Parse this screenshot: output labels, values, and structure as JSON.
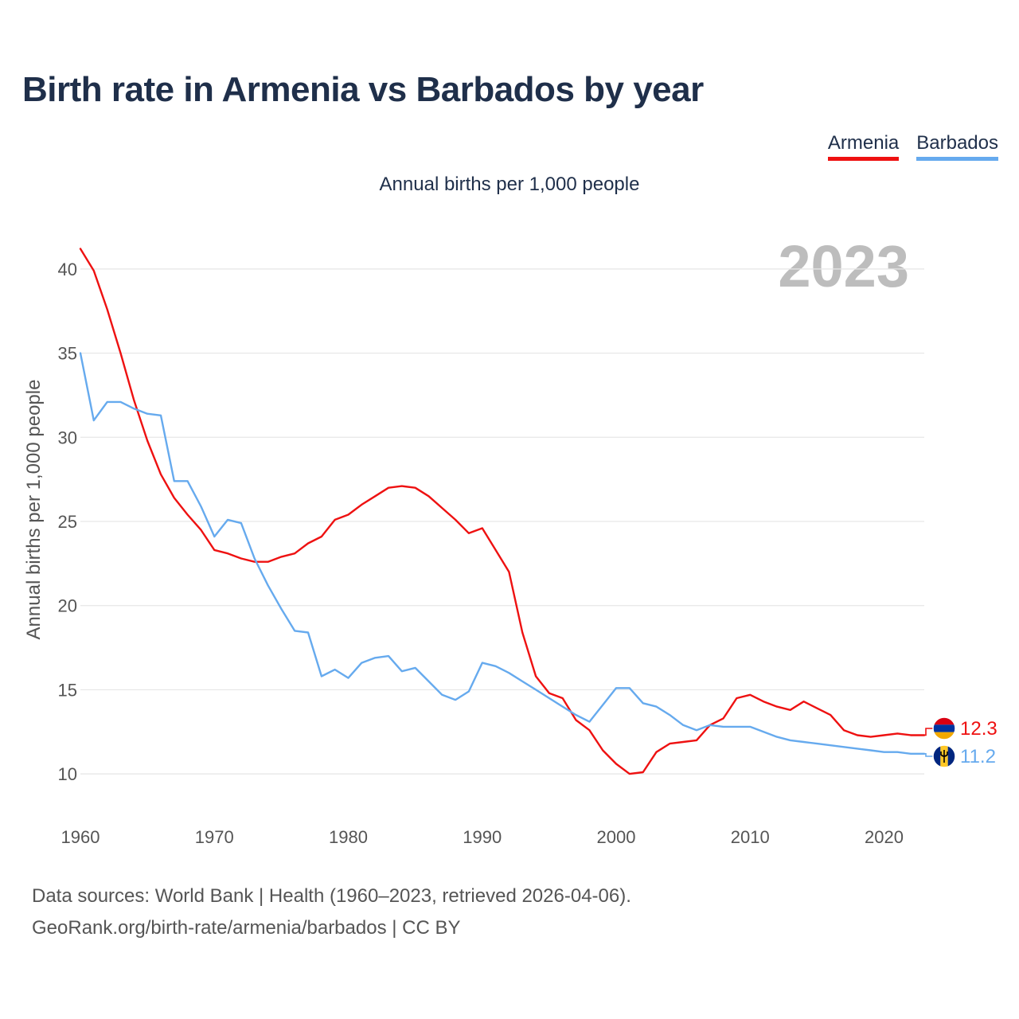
{
  "title": "Birth rate in Armenia vs Barbados by year",
  "subtitle": "Annual births per 1,000 people",
  "year_stamp": "2023",
  "legend": [
    {
      "label": "Armenia",
      "color": "#ee1111"
    },
    {
      "label": "Barbados",
      "color": "#66aaee"
    }
  ],
  "footer": {
    "line1": "Data sources: World Bank | Health (1960–2023, retrieved 2026-04-06).",
    "line2": "GeoRank.org/birth-rate/armenia/barbados | CC BY"
  },
  "chart_data": {
    "type": "line",
    "title": "Birth rate in Armenia vs Barbados by year",
    "ylabel": "Annual births per 1,000 people",
    "xlabel": "",
    "xlim": [
      1960,
      2023
    ],
    "ylim": [
      7.5,
      42.5
    ],
    "xticks": [
      1960,
      1970,
      1980,
      1990,
      2000,
      2010,
      2020
    ],
    "yticks": [
      10,
      15,
      20,
      25,
      30,
      35,
      40
    ],
    "grid": "horizontal",
    "x": [
      1960,
      1961,
      1962,
      1963,
      1964,
      1965,
      1966,
      1967,
      1968,
      1969,
      1970,
      1971,
      1972,
      1973,
      1974,
      1975,
      1976,
      1977,
      1978,
      1979,
      1980,
      1981,
      1982,
      1983,
      1984,
      1985,
      1986,
      1987,
      1988,
      1989,
      1990,
      1991,
      1992,
      1993,
      1994,
      1995,
      1996,
      1997,
      1998,
      1999,
      2000,
      2001,
      2002,
      2003,
      2004,
      2005,
      2006,
      2007,
      2008,
      2009,
      2010,
      2011,
      2012,
      2013,
      2014,
      2015,
      2016,
      2017,
      2018,
      2019,
      2020,
      2021,
      2022,
      2023
    ],
    "series": [
      {
        "name": "Armenia",
        "color": "#ee1111",
        "end_label": "12.3",
        "values": [
          41.2,
          39.9,
          37.6,
          35.0,
          32.2,
          29.8,
          27.8,
          26.4,
          25.4,
          24.5,
          23.3,
          23.1,
          22.8,
          22.6,
          22.6,
          22.9,
          23.1,
          23.7,
          24.1,
          25.1,
          25.4,
          26.0,
          26.5,
          27.0,
          27.1,
          27.0,
          26.5,
          25.8,
          25.1,
          24.3,
          24.6,
          23.3,
          22.0,
          18.4,
          15.8,
          14.8,
          14.5,
          13.2,
          12.6,
          11.4,
          10.6,
          10.0,
          10.1,
          11.3,
          11.8,
          11.9,
          12.0,
          12.9,
          13.3,
          14.5,
          14.7,
          14.3,
          14.0,
          13.8,
          14.3,
          13.9,
          13.5,
          12.6,
          12.3,
          12.2,
          12.3,
          12.4,
          12.3,
          12.3
        ]
      },
      {
        "name": "Barbados",
        "color": "#66aaee",
        "end_label": "11.2",
        "values": [
          35.0,
          31.0,
          32.1,
          32.1,
          31.7,
          31.4,
          31.3,
          27.4,
          27.4,
          25.9,
          24.1,
          25.1,
          24.9,
          22.8,
          21.2,
          19.8,
          18.5,
          18.4,
          15.8,
          16.2,
          15.7,
          16.6,
          16.9,
          17.0,
          16.1,
          16.3,
          15.5,
          14.7,
          14.4,
          14.9,
          16.6,
          16.4,
          16.0,
          15.5,
          15.0,
          14.5,
          14.0,
          13.5,
          13.1,
          14.1,
          15.1,
          15.1,
          14.2,
          14.0,
          13.5,
          12.9,
          12.6,
          12.9,
          12.8,
          12.8,
          12.8,
          12.5,
          12.2,
          12.0,
          11.9,
          11.8,
          11.7,
          11.6,
          11.5,
          11.4,
          11.3,
          11.3,
          11.2,
          11.2
        ]
      }
    ]
  }
}
